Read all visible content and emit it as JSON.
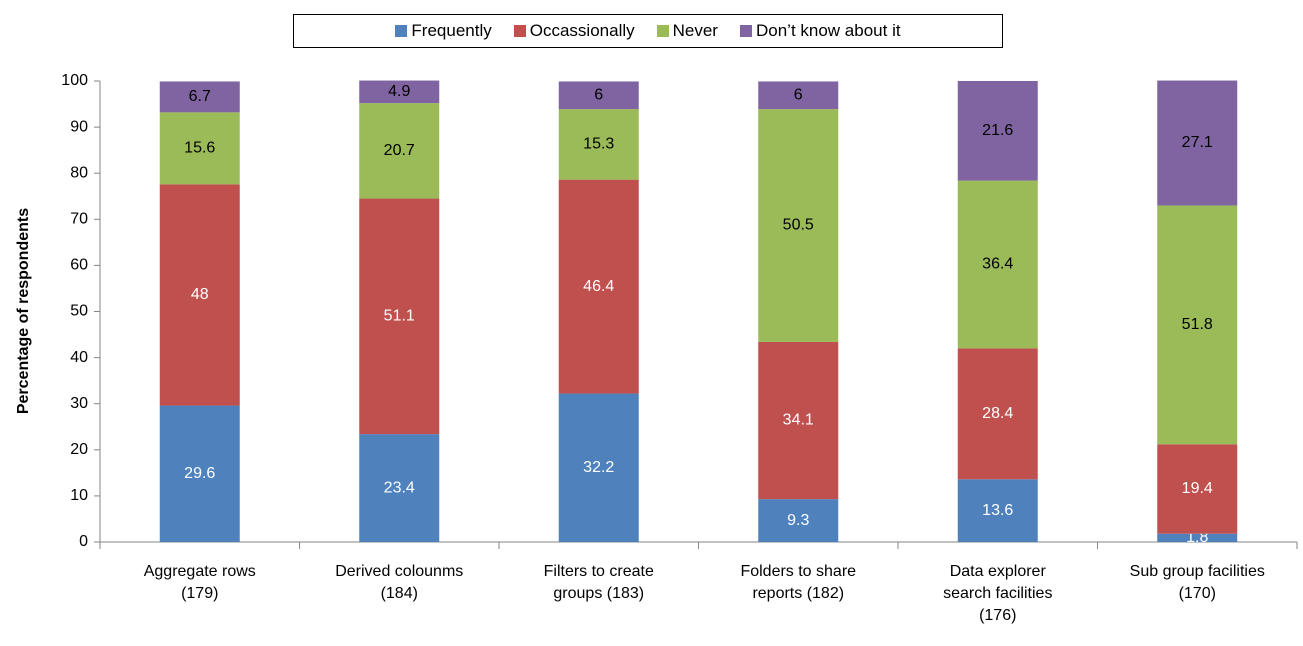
{
  "chart_data": {
    "type": "stacked_bar",
    "y_label": "Percentage of respondents",
    "categories": [
      "Aggregate rows\n(179)",
      "Derived colounms\n(184)",
      "Filters to create\ngroups (183)",
      "Folders to share\nreports (182)",
      "Data explorer\nsearch facilities\n(176)",
      "Sub group facilities\n(170)"
    ],
    "series": [
      {
        "name": "Frequently",
        "color": "#4f81bd",
        "label_color": "#ffffff",
        "values": [
          29.6,
          23.4,
          32.2,
          9.3,
          13.6,
          1.8
        ]
      },
      {
        "name": "Occassionally",
        "color": "#c0504d",
        "label_color": "#ffffff",
        "values": [
          48,
          51.1,
          46.4,
          34.1,
          28.4,
          19.4
        ]
      },
      {
        "name": "Never",
        "color": "#9bbb59",
        "label_color": "#000000",
        "values": [
          15.6,
          20.7,
          15.3,
          50.5,
          36.4,
          51.8
        ]
      },
      {
        "name": "Don’t know about it",
        "color": "#8064a2",
        "label_color": "#000000",
        "values": [
          6.7,
          4.9,
          6,
          6,
          21.6,
          27.1
        ]
      }
    ],
    "ylim": [
      0,
      100
    ],
    "yticks": [
      0,
      10,
      20,
      30,
      40,
      50,
      60,
      70,
      80,
      90,
      100
    ],
    "legend": "top",
    "grid": false
  }
}
